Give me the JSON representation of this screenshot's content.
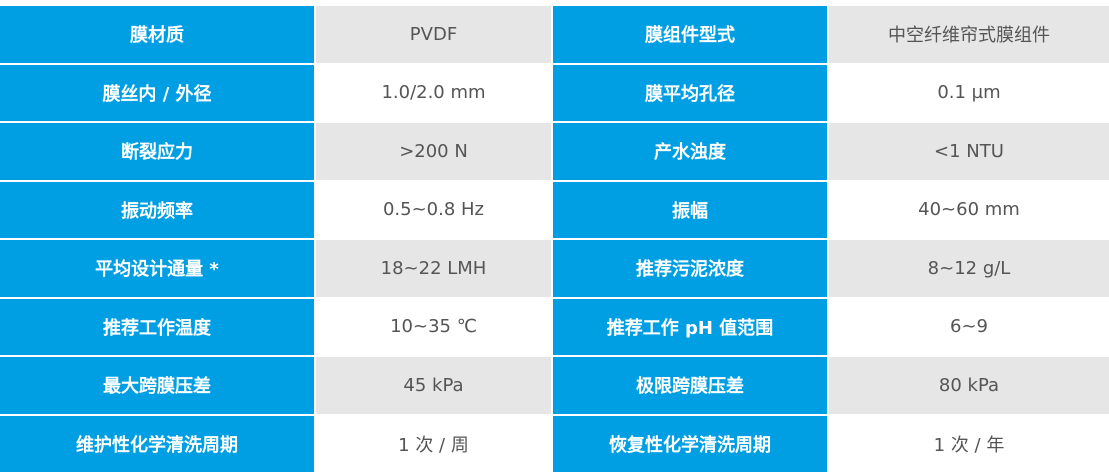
{
  "colors": {
    "header": "#009fe3",
    "row_alt": "#e6e6e6",
    "text": "#555555"
  },
  "rows": [
    {
      "k1": "膜材质",
      "v1": "PVDF",
      "k2": "膜组件型式",
      "v2": "中空纤维帘式膜组件"
    },
    {
      "k1": "膜丝内 / 外径",
      "v1": "1.0/2.0 mm",
      "k2": "膜平均孔径",
      "v2": "0.1 µm"
    },
    {
      "k1": "断裂应力",
      "v1": ">200 N",
      "k2": "产水浊度",
      "v2": "<1 NTU"
    },
    {
      "k1": "振动频率",
      "v1": "0.5~0.8 Hz",
      "k2": "振幅",
      "v2": "40~60 mm"
    },
    {
      "k1": "平均设计通量 *",
      "v1": "18~22 LMH",
      "k2": "推荐污泥浓度",
      "v2": "8~12 g/L"
    },
    {
      "k1": "推荐工作温度",
      "v1": "10~35 ℃",
      "k2": "推荐工作 pH 值范围",
      "v2": "6~9"
    },
    {
      "k1": "最大跨膜压差",
      "v1": "45 kPa",
      "k2": "极限跨膜压差",
      "v2": "80 kPa"
    },
    {
      "k1": "维护性化学清洗周期",
      "v1": "1 次 / 周",
      "k2": "恢复性化学清洗周期",
      "v2": "1 次 / 年"
    }
  ]
}
